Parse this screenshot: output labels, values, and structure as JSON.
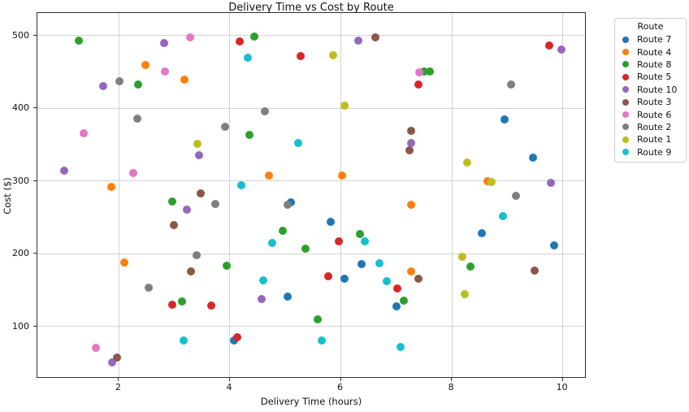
{
  "chart_data": {
    "type": "scatter",
    "title": "Delivery Time vs Cost by Route",
    "xlabel": "Delivery Time (hours)",
    "ylabel": "Cost ($)",
    "xlim": [
      0.53,
      10.43
    ],
    "ylim": [
      28,
      531
    ],
    "xticks": [
      2,
      4,
      6,
      8,
      10
    ],
    "yticks": [
      100,
      200,
      300,
      400,
      500
    ],
    "grid": true,
    "legend": {
      "title": "Route",
      "position": "outside-right"
    },
    "series": [
      {
        "name": "Route 7",
        "color": "#1f77b4",
        "points": [
          [
            5.1,
            271
          ],
          [
            5.04,
            141
          ],
          [
            4.07,
            80
          ],
          [
            6.06,
            165
          ],
          [
            6.38,
            186
          ],
          [
            7.0,
            127
          ],
          [
            5.81,
            244
          ],
          [
            8.95,
            385
          ],
          [
            9.46,
            332
          ],
          [
            8.54,
            228
          ],
          [
            9.85,
            211
          ]
        ]
      },
      {
        "name": "Route 4",
        "color": "#ff7f0e",
        "points": [
          [
            2.48,
            459
          ],
          [
            1.86,
            292
          ],
          [
            2.1,
            188
          ],
          [
            3.18,
            439
          ],
          [
            4.7,
            308
          ],
          [
            6.02,
            307
          ],
          [
            7.26,
            267
          ],
          [
            7.27,
            176
          ],
          [
            8.64,
            300
          ]
        ]
      },
      {
        "name": "Route 8",
        "color": "#2ca02c",
        "points": [
          [
            1.28,
            493
          ],
          [
            2.35,
            433
          ],
          [
            2.96,
            272
          ],
          [
            3.13,
            134
          ],
          [
            3.94,
            183
          ],
          [
            4.35,
            363
          ],
          [
            4.44,
            499
          ],
          [
            4.95,
            231
          ],
          [
            5.36,
            207
          ],
          [
            5.58,
            110
          ],
          [
            6.34,
            227
          ],
          [
            7.13,
            135
          ],
          [
            7.5,
            450
          ],
          [
            7.61,
            451
          ],
          [
            8.34,
            182
          ]
        ]
      },
      {
        "name": "Route 5",
        "color": "#d62728",
        "points": [
          [
            4.17,
            492
          ],
          [
            5.28,
            472
          ],
          [
            2.96,
            130
          ],
          [
            3.67,
            129
          ],
          [
            4.13,
            85
          ],
          [
            5.78,
            169
          ],
          [
            5.97,
            217
          ],
          [
            7.02,
            152
          ],
          [
            7.4,
            433
          ],
          [
            9.75,
            486
          ]
        ]
      },
      {
        "name": "Route 10",
        "color": "#9467bd",
        "points": [
          [
            2.82,
            490
          ],
          [
            1.71,
            430
          ],
          [
            1.01,
            314
          ],
          [
            3.45,
            335
          ],
          [
            3.22,
            260
          ],
          [
            1.88,
            50
          ],
          [
            4.57,
            137
          ],
          [
            6.32,
            493
          ],
          [
            7.27,
            352
          ],
          [
            9.98,
            481
          ],
          [
            9.79,
            297
          ]
        ]
      },
      {
        "name": "Route 3",
        "color": "#8c564b",
        "points": [
          [
            2.99,
            239
          ],
          [
            3.47,
            283
          ],
          [
            3.3,
            175
          ],
          [
            1.96,
            57
          ],
          [
            6.62,
            498
          ],
          [
            7.26,
            369
          ],
          [
            7.24,
            342
          ],
          [
            7.4,
            165
          ],
          [
            9.49,
            177
          ]
        ]
      },
      {
        "name": "Route 6",
        "color": "#e377c2",
        "points": [
          [
            1.36,
            366
          ],
          [
            2.26,
            311
          ],
          [
            2.83,
            451
          ],
          [
            3.29,
            498
          ],
          [
            1.58,
            70
          ],
          [
            7.42,
            449
          ]
        ]
      },
      {
        "name": "Route 2",
        "color": "#7f7f7f",
        "points": [
          [
            2.01,
            437
          ],
          [
            2.33,
            386
          ],
          [
            2.53,
            153
          ],
          [
            3.4,
            198
          ],
          [
            3.74,
            268
          ],
          [
            3.92,
            375
          ],
          [
            4.63,
            396
          ],
          [
            5.04,
            267
          ],
          [
            9.07,
            433
          ],
          [
            9.16,
            279
          ]
        ]
      },
      {
        "name": "Route 1",
        "color": "#bcbd22",
        "points": [
          [
            3.42,
            351
          ],
          [
            5.86,
            473
          ],
          [
            6.07,
            404
          ],
          [
            8.28,
            325
          ],
          [
            8.19,
            196
          ],
          [
            8.23,
            144
          ],
          [
            8.72,
            299
          ]
        ]
      },
      {
        "name": "Route 9",
        "color": "#17becf",
        "points": [
          [
            4.33,
            469
          ],
          [
            4.21,
            294
          ],
          [
            4.76,
            215
          ],
          [
            5.23,
            352
          ],
          [
            3.17,
            81
          ],
          [
            4.6,
            163
          ],
          [
            5.66,
            81
          ],
          [
            6.43,
            217
          ],
          [
            6.7,
            187
          ],
          [
            6.83,
            162
          ],
          [
            7.08,
            72
          ],
          [
            8.92,
            252
          ]
        ]
      }
    ]
  }
}
